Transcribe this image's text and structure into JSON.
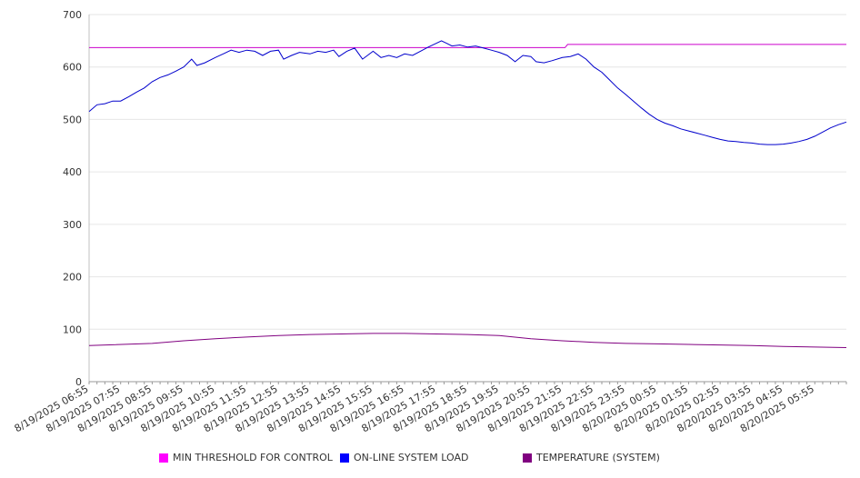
{
  "chart_data": {
    "type": "line",
    "title": "",
    "xlabel": "",
    "ylabel": "",
    "ylim": [
      0,
      700
    ],
    "yticks": [
      0,
      100,
      200,
      300,
      400,
      500,
      600,
      700
    ],
    "grid": "horizontal",
    "legend_position": "bottom",
    "x_tick_labels": [
      "8/19/2025 06:55",
      "8/19/2025 07:55",
      "8/19/2025 08:55",
      "8/19/2025 09:55",
      "8/19/2025 10:55",
      "8/19/2025 11:55",
      "8/19/2025 12:55",
      "8/19/2025 13:55",
      "8/19/2025 14:55",
      "8/19/2025 15:55",
      "8/19/2025 16:55",
      "8/19/2025 17:55",
      "8/19/2025 18:55",
      "8/19/2025 19:55",
      "8/19/2025 20:55",
      "8/19/2025 21:55",
      "8/19/2025 22:55",
      "8/19/2025 23:55",
      "8/20/2025 00:55",
      "8/20/2025 01:55",
      "8/20/2025 02:55",
      "8/20/2025 03:55",
      "8/20/2025 04:55",
      "8/20/2025 05:55"
    ],
    "x_start": "8/19/2025 06:55",
    "x_end": "8/20/2025 06:55",
    "series": [
      {
        "name": "MIN THRESHOLD FOR CONTROL",
        "color": "#cc00cc",
        "points": [
          [
            "8/19/2025 06:55",
            637
          ],
          [
            "8/19/2025 22:00",
            637
          ],
          [
            "8/19/2025 22:05",
            643
          ],
          [
            "8/20/2025 06:55",
            643
          ]
        ]
      },
      {
        "name": "ON-LINE SYSTEM LOAD",
        "color": "#0000cc",
        "points": [
          [
            "8/19/2025 06:55",
            515
          ],
          [
            "8/19/2025 07:10",
            528
          ],
          [
            "8/19/2025 07:25",
            530
          ],
          [
            "8/19/2025 07:40",
            535
          ],
          [
            "8/19/2025 07:55",
            535
          ],
          [
            "8/19/2025 08:10",
            543
          ],
          [
            "8/19/2025 08:25",
            552
          ],
          [
            "8/19/2025 08:40",
            560
          ],
          [
            "8/19/2025 08:55",
            572
          ],
          [
            "8/19/2025 09:10",
            580
          ],
          [
            "8/19/2025 09:25",
            585
          ],
          [
            "8/19/2025 09:40",
            592
          ],
          [
            "8/19/2025 09:55",
            600
          ],
          [
            "8/19/2025 10:10",
            615
          ],
          [
            "8/19/2025 10:20",
            603
          ],
          [
            "8/19/2025 10:35",
            608
          ],
          [
            "8/19/2025 10:55",
            618
          ],
          [
            "8/19/2025 11:10",
            625
          ],
          [
            "8/19/2025 11:25",
            632
          ],
          [
            "8/19/2025 11:40",
            628
          ],
          [
            "8/19/2025 11:55",
            632
          ],
          [
            "8/19/2025 12:10",
            630
          ],
          [
            "8/19/2025 12:25",
            622
          ],
          [
            "8/19/2025 12:40",
            630
          ],
          [
            "8/19/2025 12:55",
            632
          ],
          [
            "8/19/2025 13:05",
            615
          ],
          [
            "8/19/2025 13:20",
            622
          ],
          [
            "8/19/2025 13:35",
            628
          ],
          [
            "8/19/2025 13:55",
            625
          ],
          [
            "8/19/2025 14:10",
            630
          ],
          [
            "8/19/2025 14:25",
            628
          ],
          [
            "8/19/2025 14:40",
            632
          ],
          [
            "8/19/2025 14:50",
            620
          ],
          [
            "8/19/2025 15:05",
            630
          ],
          [
            "8/19/2025 15:20",
            636
          ],
          [
            "8/19/2025 15:35",
            615
          ],
          [
            "8/19/2025 15:55",
            630
          ],
          [
            "8/19/2025 16:10",
            618
          ],
          [
            "8/19/2025 16:25",
            622
          ],
          [
            "8/19/2025 16:40",
            618
          ],
          [
            "8/19/2025 16:55",
            625
          ],
          [
            "8/19/2025 17:10",
            622
          ],
          [
            "8/19/2025 17:25",
            630
          ],
          [
            "8/19/2025 17:40",
            638
          ],
          [
            "8/19/2025 17:55",
            645
          ],
          [
            "8/19/2025 18:05",
            650
          ],
          [
            "8/19/2025 18:15",
            645
          ],
          [
            "8/19/2025 18:25",
            640
          ],
          [
            "8/19/2025 18:40",
            642
          ],
          [
            "8/19/2025 18:55",
            638
          ],
          [
            "8/19/2025 19:10",
            640
          ],
          [
            "8/19/2025 19:25",
            636
          ],
          [
            "8/19/2025 19:40",
            632
          ],
          [
            "8/19/2025 19:55",
            628
          ],
          [
            "8/19/2025 20:10",
            622
          ],
          [
            "8/19/2025 20:25",
            610
          ],
          [
            "8/19/2025 20:40",
            622
          ],
          [
            "8/19/2025 20:55",
            620
          ],
          [
            "8/19/2025 21:05",
            610
          ],
          [
            "8/19/2025 21:20",
            608
          ],
          [
            "8/19/2025 21:35",
            612
          ],
          [
            "8/19/2025 21:55",
            618
          ],
          [
            "8/19/2025 22:10",
            620
          ],
          [
            "8/19/2025 22:25",
            625
          ],
          [
            "8/19/2025 22:40",
            615
          ],
          [
            "8/19/2025 22:55",
            600
          ],
          [
            "8/19/2025 23:10",
            590
          ],
          [
            "8/19/2025 23:25",
            575
          ],
          [
            "8/19/2025 23:40",
            560
          ],
          [
            "8/19/2025 23:55",
            548
          ],
          [
            "8/20/2025 00:10",
            535
          ],
          [
            "8/20/2025 00:25",
            522
          ],
          [
            "8/20/2025 00:40",
            510
          ],
          [
            "8/20/2025 00:55",
            500
          ],
          [
            "8/20/2025 01:10",
            493
          ],
          [
            "8/20/2025 01:25",
            488
          ],
          [
            "8/20/2025 01:40",
            482
          ],
          [
            "8/20/2025 01:55",
            478
          ],
          [
            "8/20/2025 02:10",
            474
          ],
          [
            "8/20/2025 02:25",
            470
          ],
          [
            "8/20/2025 02:40",
            466
          ],
          [
            "8/20/2025 02:55",
            462
          ],
          [
            "8/20/2025 03:10",
            459
          ],
          [
            "8/20/2025 03:25",
            458
          ],
          [
            "8/20/2025 03:40",
            456
          ],
          [
            "8/20/2025 03:55",
            455
          ],
          [
            "8/20/2025 04:10",
            453
          ],
          [
            "8/20/2025 04:25",
            452
          ],
          [
            "8/20/2025 04:40",
            452
          ],
          [
            "8/20/2025 04:55",
            453
          ],
          [
            "8/20/2025 05:10",
            455
          ],
          [
            "8/20/2025 05:25",
            458
          ],
          [
            "8/20/2025 05:40",
            462
          ],
          [
            "8/20/2025 05:55",
            468
          ],
          [
            "8/20/2025 06:10",
            476
          ],
          [
            "8/20/2025 06:25",
            484
          ],
          [
            "8/20/2025 06:40",
            490
          ],
          [
            "8/20/2025 06:55",
            495
          ]
        ]
      },
      {
        "name": "TEMPERATURE (SYSTEM)",
        "color": "#800080",
        "points": [
          [
            "8/19/2025 06:55",
            69
          ],
          [
            "8/19/2025 08:55",
            73
          ],
          [
            "8/19/2025 09:55",
            78
          ],
          [
            "8/19/2025 10:55",
            82
          ],
          [
            "8/19/2025 11:55",
            85
          ],
          [
            "8/19/2025 12:55",
            88
          ],
          [
            "8/19/2025 13:55",
            90
          ],
          [
            "8/19/2025 14:55",
            91
          ],
          [
            "8/19/2025 15:55",
            92
          ],
          [
            "8/19/2025 16:55",
            92
          ],
          [
            "8/19/2025 17:55",
            91
          ],
          [
            "8/19/2025 18:55",
            90
          ],
          [
            "8/19/2025 19:55",
            88
          ],
          [
            "8/19/2025 20:55",
            82
          ],
          [
            "8/19/2025 21:55",
            78
          ],
          [
            "8/19/2025 22:55",
            75
          ],
          [
            "8/19/2025 23:55",
            73
          ],
          [
            "8/20/2025 00:55",
            72
          ],
          [
            "8/20/2025 01:55",
            71
          ],
          [
            "8/20/2025 02:55",
            70
          ],
          [
            "8/20/2025 03:55",
            69
          ],
          [
            "8/20/2025 04:55",
            67
          ],
          [
            "8/20/2025 05:55",
            66
          ],
          [
            "8/20/2025 06:55",
            65
          ]
        ]
      }
    ]
  },
  "legend": {
    "items": [
      {
        "label": "MIN THRESHOLD FOR CONTROL",
        "color": "#ff00ff"
      },
      {
        "label": "ON-LINE SYSTEM LOAD",
        "color": "#0000ff"
      },
      {
        "label": "TEMPERATURE (SYSTEM)",
        "color": "#800080"
      }
    ]
  }
}
